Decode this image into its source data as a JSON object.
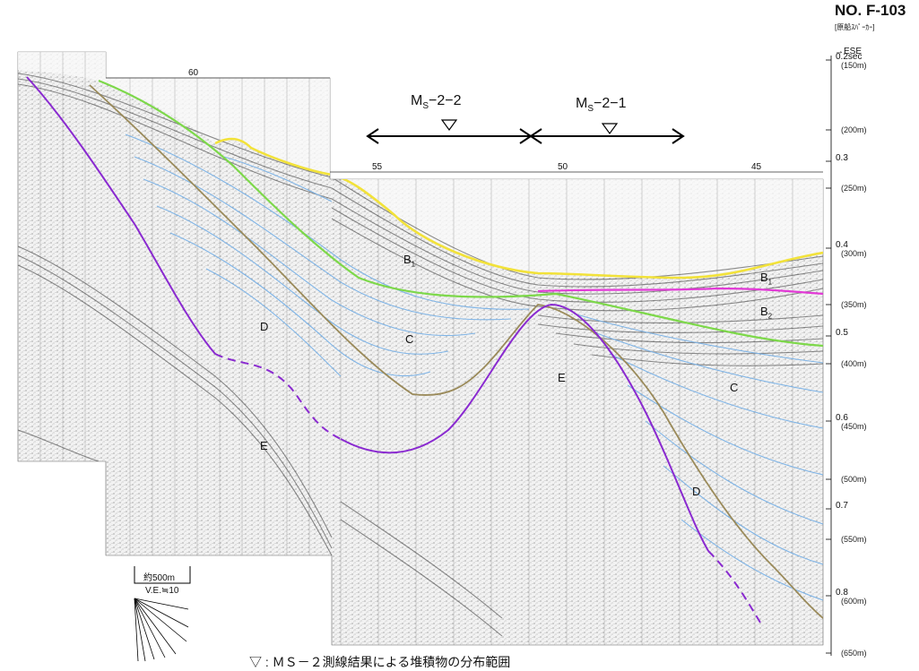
{
  "header": {
    "line_no": "NO. F-103",
    "source": "[原船ｽﾊﾟｰｶｰ]",
    "direction": "→ESE"
  },
  "depth_axis": [
    {
      "t": "0.2sec",
      "m": "(150m)"
    },
    {
      "t": "",
      "m": "(200m)"
    },
    {
      "t": "0.3",
      "m": ""
    },
    {
      "t": "",
      "m": "(250m)"
    },
    {
      "t": "0.4",
      "m": "(300m)"
    },
    {
      "t": "",
      "m": "(350m)"
    },
    {
      "t": "0.5",
      "m": ""
    },
    {
      "t": "",
      "m": "(400m)"
    },
    {
      "t": "0.6",
      "m": "(450m)"
    },
    {
      "t": "",
      "m": "(500m)"
    },
    {
      "t": "0.7",
      "m": ""
    },
    {
      "t": "",
      "m": "(550m)"
    },
    {
      "t": "0.8",
      "m": "(600m)"
    },
    {
      "t": "",
      "m": "(650m)"
    }
  ],
  "shotpoints": [
    "60",
    "55",
    "50",
    "45"
  ],
  "markers": [
    {
      "label": "M",
      "sub": "S",
      "rest": "−2−2"
    },
    {
      "label": "M",
      "sub": "S",
      "rest": "−2−1"
    }
  ],
  "layers": {
    "b1_a": "B",
    "b1_a_sub": "1",
    "b1_b": "B",
    "b1_b_sub": "1",
    "b2": "B",
    "b2_sub": "2",
    "c_a": "C",
    "c_b": "C",
    "d_a": "D",
    "d_b": "D",
    "e_a": "E",
    "e_b": "E"
  },
  "scale": {
    "length": "約500m",
    "ve": "V.E.≒10"
  },
  "caption": "▽ : ＭＳ－２測線結果による堆積物の分布範囲",
  "colors": {
    "seafloor": "#f2e23a",
    "b1_base": "#7dd84a",
    "b2_top": "#e23ad6",
    "c_lines": "#7fb4e6",
    "d_base": "#9a8a5a",
    "e_top": "#8a2ad0"
  }
}
